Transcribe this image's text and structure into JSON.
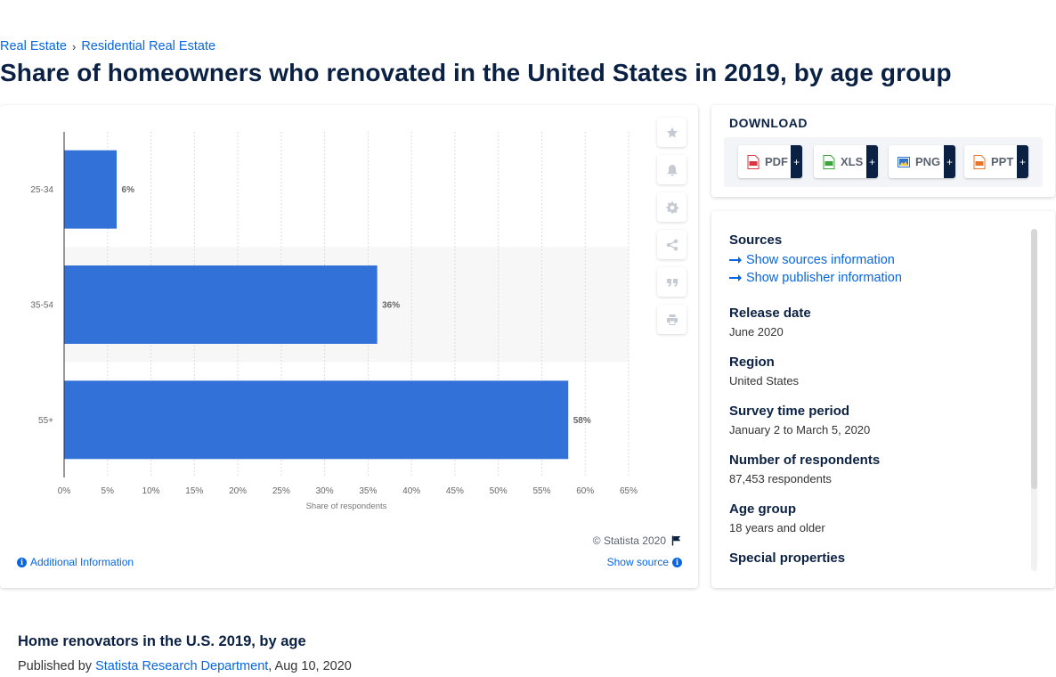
{
  "breadcrumb": {
    "items": [
      "Real Estate",
      "Residential Real Estate"
    ],
    "separator": "›"
  },
  "page_title": "Share of homeowners who renovated in the United States in 2019, by age group",
  "chart_data": {
    "type": "bar",
    "orientation": "horizontal",
    "categories": [
      "25-34",
      "35-54",
      "55+"
    ],
    "values": [
      6,
      36,
      58
    ],
    "value_labels": [
      "6%",
      "36%",
      "58%"
    ],
    "xlabel": "Share of respondents",
    "xlim": [
      0,
      65
    ],
    "xticks": [
      "0%",
      "5%",
      "10%",
      "15%",
      "20%",
      "25%",
      "30%",
      "35%",
      "40%",
      "45%",
      "50%",
      "55%",
      "60%",
      "65%"
    ],
    "grid": "vertical",
    "bar_color": "#3271d7"
  },
  "chart_panel": {
    "copyright": "© Statista 2020",
    "additional_info": "Additional Information",
    "show_source": "Show source",
    "tools": [
      "star-icon",
      "bell-icon",
      "gear-icon",
      "share-icon",
      "quote-icon",
      "print-icon"
    ]
  },
  "download": {
    "title": "DOWNLOAD",
    "formats": [
      {
        "label": "PDF",
        "icon": "pdf-file-icon",
        "color": "#d9353f"
      },
      {
        "label": "XLS",
        "icon": "xls-file-icon",
        "color": "#3aa43a"
      },
      {
        "label": "PNG",
        "icon": "png-file-icon",
        "color": "#2f72c8"
      },
      {
        "label": "PPT",
        "icon": "ppt-file-icon",
        "color": "#e8772e"
      }
    ],
    "plus": "+"
  },
  "meta": {
    "sources_label": "Sources",
    "show_sources": "Show sources information",
    "show_publisher": "Show publisher information",
    "release_label": "Release date",
    "release_value": "June 2020",
    "region_label": "Region",
    "region_value": "United States",
    "survey_label": "Survey time period",
    "survey_value": "January 2 to March 5, 2020",
    "respondents_label": "Number of respondents",
    "respondents_value": "87,453 respondents",
    "age_label": "Age group",
    "age_value": "18 years and older",
    "special_label": "Special properties"
  },
  "bottom": {
    "title": "Home renovators in the U.S. 2019, by age",
    "published_prefix": "Published by",
    "publisher": "Statista Research Department",
    "date": ", Aug 10, 2020"
  },
  "colors": {
    "accent": "#0666e5",
    "navy": "#0b2144",
    "bar": "#3271d7"
  }
}
